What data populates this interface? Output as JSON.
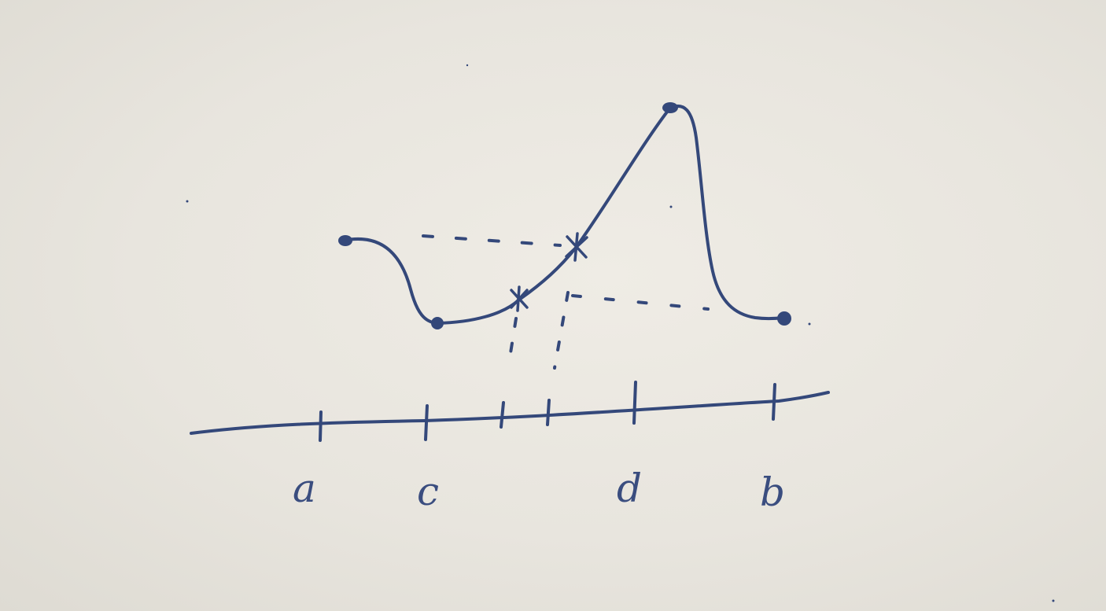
{
  "diagram": {
    "axis_labels": {
      "a": "a",
      "c": "c",
      "d": "d",
      "b": "b"
    },
    "ink_color": "#34487a",
    "paper_color": "#ebe8e1"
  }
}
